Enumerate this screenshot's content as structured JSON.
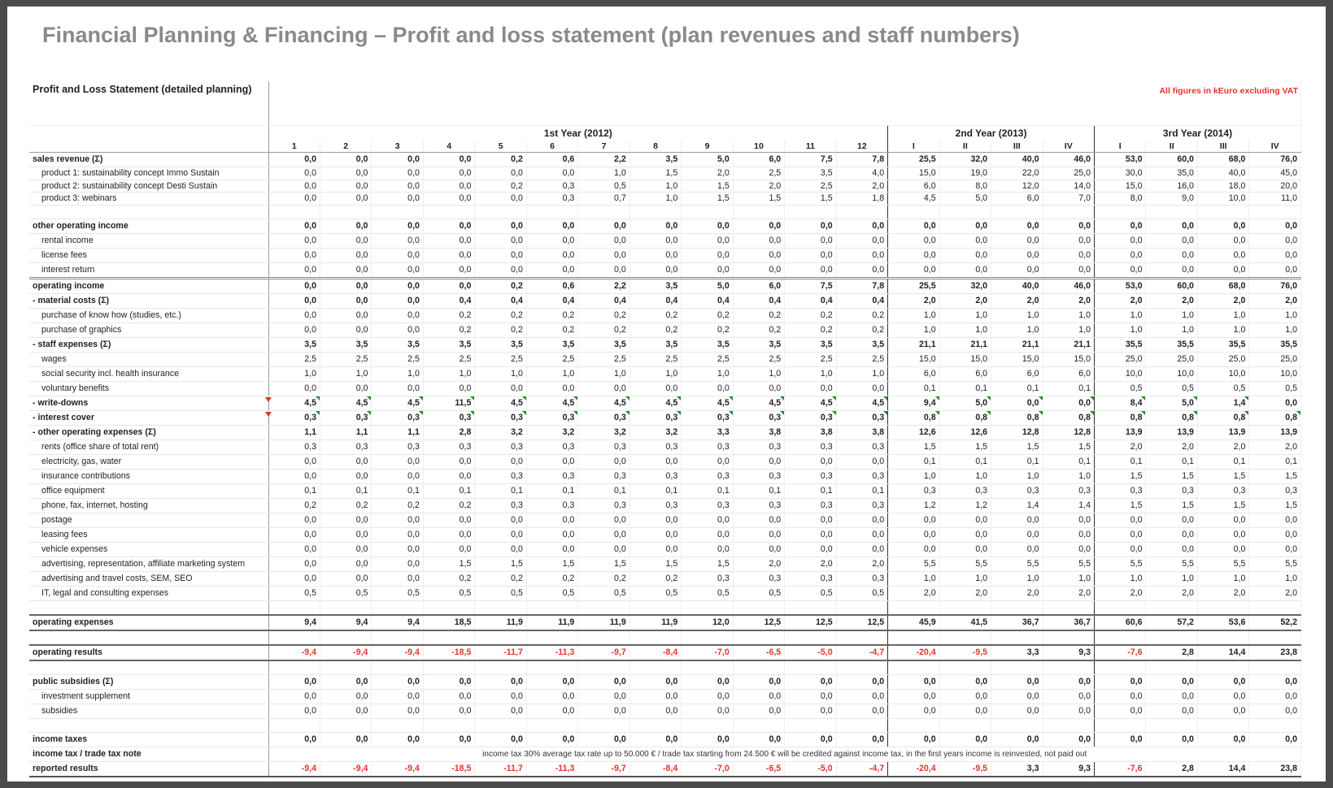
{
  "title": "Financial Planning & Financing – Profit and loss statement (plan revenues and staff numbers)",
  "statement_title": "Profit and Loss Statement (detailed planning)",
  "units_note": "All figures in kEuro excluding VAT",
  "years": [
    "1st Year (2012)",
    "2nd Year (2013)",
    "3rd Year (2014)"
  ],
  "columns": [
    "1",
    "2",
    "3",
    "4",
    "5",
    "6",
    "7",
    "8",
    "9",
    "10",
    "11",
    "12",
    "I",
    "II",
    "III",
    "IV",
    "I",
    "II",
    "III",
    "IV"
  ],
  "colors": {
    "negative": "#e8312f",
    "title": "#8a8a8a",
    "comment_marker": "#2e8b2e"
  },
  "rows": [
    {
      "label": "sales revenue (Σ)",
      "kind": "sum",
      "values": [
        "0,0",
        "0,0",
        "0,0",
        "0,0",
        "0,2",
        "0,6",
        "2,2",
        "3,5",
        "5,0",
        "6,0",
        "7,5",
        "7,8",
        "25,5",
        "32,0",
        "40,0",
        "46,0",
        "53,0",
        "60,0",
        "68,0",
        "76,0"
      ]
    },
    {
      "label": "product 1: sustainability concept Immo Sustain",
      "kind": "prod",
      "values": [
        "0,0",
        "0,0",
        "0,0",
        "0,0",
        "0,0",
        "0,0",
        "1,0",
        "1,5",
        "2,0",
        "2,5",
        "3,5",
        "4,0",
        "15,0",
        "19,0",
        "22,0",
        "25,0",
        "30,0",
        "35,0",
        "40,0",
        "45,0"
      ]
    },
    {
      "label": "product 2: sustainability concept Desti Sustain",
      "kind": "prod",
      "values": [
        "0,0",
        "0,0",
        "0,0",
        "0,0",
        "0,2",
        "0,3",
        "0,5",
        "1,0",
        "1,5",
        "2,0",
        "2,5",
        "2,0",
        "6,0",
        "8,0",
        "12,0",
        "14,0",
        "15,0",
        "16,0",
        "18,0",
        "20,0"
      ]
    },
    {
      "label": "product 3: webinars",
      "kind": "prod",
      "values": [
        "0,0",
        "0,0",
        "0,0",
        "0,0",
        "0,0",
        "0,3",
        "0,7",
        "1,0",
        "1,5",
        "1,5",
        "1,5",
        "1,8",
        "4,5",
        "5,0",
        "6,0",
        "7,0",
        "8,0",
        "9,0",
        "10,0",
        "11,0"
      ]
    },
    {
      "kind": "spacer"
    },
    {
      "label": "other operating income",
      "kind": "sum",
      "values": [
        "0,0",
        "0,0",
        "0,0",
        "0,0",
        "0,0",
        "0,0",
        "0,0",
        "0,0",
        "0,0",
        "0,0",
        "0,0",
        "0,0",
        "0,0",
        "0,0",
        "0,0",
        "0,0",
        "0,0",
        "0,0",
        "0,0",
        "0,0"
      ]
    },
    {
      "label": "rental income",
      "kind": "item",
      "values": [
        "0,0",
        "0,0",
        "0,0",
        "0,0",
        "0,0",
        "0,0",
        "0,0",
        "0,0",
        "0,0",
        "0,0",
        "0,0",
        "0,0",
        "0,0",
        "0,0",
        "0,0",
        "0,0",
        "0,0",
        "0,0",
        "0,0",
        "0,0"
      ]
    },
    {
      "label": "license fees",
      "kind": "item",
      "values": [
        "0,0",
        "0,0",
        "0,0",
        "0,0",
        "0,0",
        "0,0",
        "0,0",
        "0,0",
        "0,0",
        "0,0",
        "0,0",
        "0,0",
        "0,0",
        "0,0",
        "0,0",
        "0,0",
        "0,0",
        "0,0",
        "0,0",
        "0,0"
      ]
    },
    {
      "label": "interest return",
      "kind": "item",
      "values": [
        "0,0",
        "0,0",
        "0,0",
        "0,0",
        "0,0",
        "0,0",
        "0,0",
        "0,0",
        "0,0",
        "0,0",
        "0,0",
        "0,0",
        "0,0",
        "0,0",
        "0,0",
        "0,0",
        "0,0",
        "0,0",
        "0,0",
        "0,0"
      ]
    },
    {
      "label": "operating income",
      "kind": "total",
      "values": [
        "0,0",
        "0,0",
        "0,0",
        "0,0",
        "0,2",
        "0,6",
        "2,2",
        "3,5",
        "5,0",
        "6,0",
        "7,5",
        "7,8",
        "25,5",
        "32,0",
        "40,0",
        "46,0",
        "53,0",
        "60,0",
        "68,0",
        "76,0"
      ]
    },
    {
      "label": "- material costs (Σ)",
      "kind": "sum",
      "values": [
        "0,0",
        "0,0",
        "0,0",
        "0,4",
        "0,4",
        "0,4",
        "0,4",
        "0,4",
        "0,4",
        "0,4",
        "0,4",
        "0,4",
        "2,0",
        "2,0",
        "2,0",
        "2,0",
        "2,0",
        "2,0",
        "2,0",
        "2,0"
      ]
    },
    {
      "label": "purchase of know how (studies, etc.)",
      "kind": "item",
      "values": [
        "0,0",
        "0,0",
        "0,0",
        "0,2",
        "0,2",
        "0,2",
        "0,2",
        "0,2",
        "0,2",
        "0,2",
        "0,2",
        "0,2",
        "1,0",
        "1,0",
        "1,0",
        "1,0",
        "1,0",
        "1,0",
        "1,0",
        "1,0"
      ]
    },
    {
      "label": "purchase of graphics",
      "kind": "item",
      "values": [
        "0,0",
        "0,0",
        "0,0",
        "0,2",
        "0,2",
        "0,2",
        "0,2",
        "0,2",
        "0,2",
        "0,2",
        "0,2",
        "0,2",
        "1,0",
        "1,0",
        "1,0",
        "1,0",
        "1,0",
        "1,0",
        "1,0",
        "1,0"
      ]
    },
    {
      "label": "- staff expenses (Σ)",
      "kind": "sum",
      "values": [
        "3,5",
        "3,5",
        "3,5",
        "3,5",
        "3,5",
        "3,5",
        "3,5",
        "3,5",
        "3,5",
        "3,5",
        "3,5",
        "3,5",
        "21,1",
        "21,1",
        "21,1",
        "21,1",
        "35,5",
        "35,5",
        "35,5",
        "35,5"
      ]
    },
    {
      "label": "wages",
      "kind": "item",
      "values": [
        "2,5",
        "2,5",
        "2,5",
        "2,5",
        "2,5",
        "2,5",
        "2,5",
        "2,5",
        "2,5",
        "2,5",
        "2,5",
        "2,5",
        "15,0",
        "15,0",
        "15,0",
        "15,0",
        "25,0",
        "25,0",
        "25,0",
        "25,0"
      ]
    },
    {
      "label": "social security incl. health insurance",
      "kind": "item",
      "values": [
        "1,0",
        "1,0",
        "1,0",
        "1,0",
        "1,0",
        "1,0",
        "1,0",
        "1,0",
        "1,0",
        "1,0",
        "1,0",
        "1,0",
        "6,0",
        "6,0",
        "6,0",
        "6,0",
        "10,0",
        "10,0",
        "10,0",
        "10,0"
      ]
    },
    {
      "label": "voluntary benefits",
      "kind": "item",
      "values": [
        "0,0",
        "0,0",
        "0,0",
        "0,0",
        "0,0",
        "0,0",
        "0,0",
        "0,0",
        "0,0",
        "0,0",
        "0,0",
        "0,0",
        "0,1",
        "0,1",
        "0,1",
        "0,1",
        "0,5",
        "0,5",
        "0,5",
        "0,5"
      ]
    },
    {
      "label": "- write-downs",
      "kind": "sum-comment",
      "values": [
        "4,5",
        "4,5",
        "4,5",
        "11,5",
        "4,5",
        "4,5",
        "4,5",
        "4,5",
        "4,5",
        "4,5",
        "4,5",
        "4,5",
        "9,4",
        "5,0",
        "0,0",
        "0,0",
        "8,4",
        "5,0",
        "1,4",
        "0,0"
      ]
    },
    {
      "label": "- interest cover",
      "kind": "sum-comment",
      "values": [
        "0,3",
        "0,3",
        "0,3",
        "0,3",
        "0,3",
        "0,3",
        "0,3",
        "0,3",
        "0,3",
        "0,3",
        "0,3",
        "0,3",
        "0,8",
        "0,8",
        "0,8",
        "0,8",
        "0,8",
        "0,8",
        "0,8",
        "0,8"
      ]
    },
    {
      "label": "- other operating expenses (Σ)",
      "kind": "sum",
      "values": [
        "1,1",
        "1,1",
        "1,1",
        "2,8",
        "3,2",
        "3,2",
        "3,2",
        "3,2",
        "3,3",
        "3,8",
        "3,8",
        "3,8",
        "12,6",
        "12,6",
        "12,8",
        "12,8",
        "13,9",
        "13,9",
        "13,9",
        "13,9"
      ]
    },
    {
      "label": "rents (office share of total rent)",
      "kind": "item",
      "values": [
        "0,3",
        "0,3",
        "0,3",
        "0,3",
        "0,3",
        "0,3",
        "0,3",
        "0,3",
        "0,3",
        "0,3",
        "0,3",
        "0,3",
        "1,5",
        "1,5",
        "1,5",
        "1,5",
        "2,0",
        "2,0",
        "2,0",
        "2,0"
      ]
    },
    {
      "label": "electricity, gas, water",
      "kind": "item",
      "values": [
        "0,0",
        "0,0",
        "0,0",
        "0,0",
        "0,0",
        "0,0",
        "0,0",
        "0,0",
        "0,0",
        "0,0",
        "0,0",
        "0,0",
        "0,1",
        "0,1",
        "0,1",
        "0,1",
        "0,1",
        "0,1",
        "0,1",
        "0,1"
      ]
    },
    {
      "label": "insurance contributions",
      "kind": "item",
      "values": [
        "0,0",
        "0,0",
        "0,0",
        "0,0",
        "0,3",
        "0,3",
        "0,3",
        "0,3",
        "0,3",
        "0,3",
        "0,3",
        "0,3",
        "1,0",
        "1,0",
        "1,0",
        "1,0",
        "1,5",
        "1,5",
        "1,5",
        "1,5"
      ]
    },
    {
      "label": "office equipment",
      "kind": "item",
      "values": [
        "0,1",
        "0,1",
        "0,1",
        "0,1",
        "0,1",
        "0,1",
        "0,1",
        "0,1",
        "0,1",
        "0,1",
        "0,1",
        "0,1",
        "0,3",
        "0,3",
        "0,3",
        "0,3",
        "0,3",
        "0,3",
        "0,3",
        "0,3"
      ]
    },
    {
      "label": "phone, fax, internet, hosting",
      "kind": "item",
      "values": [
        "0,2",
        "0,2",
        "0,2",
        "0,2",
        "0,3",
        "0,3",
        "0,3",
        "0,3",
        "0,3",
        "0,3",
        "0,3",
        "0,3",
        "1,2",
        "1,2",
        "1,4",
        "1,4",
        "1,5",
        "1,5",
        "1,5",
        "1,5"
      ]
    },
    {
      "label": "postage",
      "kind": "item",
      "values": [
        "0,0",
        "0,0",
        "0,0",
        "0,0",
        "0,0",
        "0,0",
        "0,0",
        "0,0",
        "0,0",
        "0,0",
        "0,0",
        "0,0",
        "0,0",
        "0,0",
        "0,0",
        "0,0",
        "0,0",
        "0,0",
        "0,0",
        "0,0"
      ]
    },
    {
      "label": "leasing fees",
      "kind": "item",
      "values": [
        "0,0",
        "0,0",
        "0,0",
        "0,0",
        "0,0",
        "0,0",
        "0,0",
        "0,0",
        "0,0",
        "0,0",
        "0,0",
        "0,0",
        "0,0",
        "0,0",
        "0,0",
        "0,0",
        "0,0",
        "0,0",
        "0,0",
        "0,0"
      ]
    },
    {
      "label": "vehicle expenses",
      "kind": "item",
      "values": [
        "0,0",
        "0,0",
        "0,0",
        "0,0",
        "0,0",
        "0,0",
        "0,0",
        "0,0",
        "0,0",
        "0,0",
        "0,0",
        "0,0",
        "0,0",
        "0,0",
        "0,0",
        "0,0",
        "0,0",
        "0,0",
        "0,0",
        "0,0"
      ]
    },
    {
      "label": "advertising, representation, affiliate marketing system",
      "kind": "item",
      "values": [
        "0,0",
        "0,0",
        "0,0",
        "1,5",
        "1,5",
        "1,5",
        "1,5",
        "1,5",
        "1,5",
        "2,0",
        "2,0",
        "2,0",
        "5,5",
        "5,5",
        "5,5",
        "5,5",
        "5,5",
        "5,5",
        "5,5",
        "5,5"
      ]
    },
    {
      "label": "advertising and travel costs, SEM, SEO",
      "kind": "item",
      "values": [
        "0,0",
        "0,0",
        "0,0",
        "0,2",
        "0,2",
        "0,2",
        "0,2",
        "0,2",
        "0,3",
        "0,3",
        "0,3",
        "0,3",
        "1,0",
        "1,0",
        "1,0",
        "1,0",
        "1,0",
        "1,0",
        "1,0",
        "1,0"
      ]
    },
    {
      "label": "IT, legal and consulting expenses",
      "kind": "item",
      "values": [
        "0,5",
        "0,5",
        "0,5",
        "0,5",
        "0,5",
        "0,5",
        "0,5",
        "0,5",
        "0,5",
        "0,5",
        "0,5",
        "0,5",
        "2,0",
        "2,0",
        "2,0",
        "2,0",
        "2,0",
        "2,0",
        "2,0",
        "2,0"
      ]
    },
    {
      "kind": "spacer"
    },
    {
      "label": "operating expenses",
      "kind": "boxed",
      "values": [
        "9,4",
        "9,4",
        "9,4",
        "18,5",
        "11,9",
        "11,9",
        "11,9",
        "11,9",
        "12,0",
        "12,5",
        "12,5",
        "12,5",
        "45,9",
        "41,5",
        "36,7",
        "36,7",
        "60,6",
        "57,2",
        "53,6",
        "52,2"
      ]
    },
    {
      "kind": "spacer"
    },
    {
      "label": "operating results",
      "kind": "boxed",
      "values": [
        "-9,4",
        "-9,4",
        "-9,4",
        "-18,5",
        "-11,7",
        "-11,3",
        "-9,7",
        "-8,4",
        "-7,0",
        "-6,5",
        "-5,0",
        "-4,7",
        "-20,4",
        "-9,5",
        "3,3",
        "9,3",
        "-7,6",
        "2,8",
        "14,4",
        "23,8"
      ]
    },
    {
      "kind": "spacer"
    },
    {
      "label": "public subsidies (Σ)",
      "kind": "sum",
      "values": [
        "0,0",
        "0,0",
        "0,0",
        "0,0",
        "0,0",
        "0,0",
        "0,0",
        "0,0",
        "0,0",
        "0,0",
        "0,0",
        "0,0",
        "0,0",
        "0,0",
        "0,0",
        "0,0",
        "0,0",
        "0,0",
        "0,0",
        "0,0"
      ]
    },
    {
      "label": "investment supplement",
      "kind": "item",
      "values": [
        "0,0",
        "0,0",
        "0,0",
        "0,0",
        "0,0",
        "0,0",
        "0,0",
        "0,0",
        "0,0",
        "0,0",
        "0,0",
        "0,0",
        "0,0",
        "0,0",
        "0,0",
        "0,0",
        "0,0",
        "0,0",
        "0,0",
        "0,0"
      ]
    },
    {
      "label": "subsidies",
      "kind": "item",
      "values": [
        "0,0",
        "0,0",
        "0,0",
        "0,0",
        "0,0",
        "0,0",
        "0,0",
        "0,0",
        "0,0",
        "0,0",
        "0,0",
        "0,0",
        "0,0",
        "0,0",
        "0,0",
        "0,0",
        "0,0",
        "0,0",
        "0,0",
        "0,0"
      ]
    },
    {
      "kind": "spacer"
    },
    {
      "label": "income taxes",
      "kind": "sum",
      "values": [
        "0,0",
        "0,0",
        "0,0",
        "0,0",
        "0,0",
        "0,0",
        "0,0",
        "0,0",
        "0,0",
        "0,0",
        "0,0",
        "0,0",
        "0,0",
        "0,0",
        "0,0",
        "0,0",
        "0,0",
        "0,0",
        "0,0",
        "0,0"
      ]
    },
    {
      "label": "income tax / trade tax note",
      "kind": "note",
      "note": "income tax 30%  average tax rate up to 50.000 € / trade tax starting from 24.500 € will be credited against income tax, in the first years income is reinvested, not paid out"
    },
    {
      "label": "reported results",
      "kind": "final",
      "values": [
        "-9,4",
        "-9,4",
        "-9,4",
        "-18,5",
        "-11,7",
        "-11,3",
        "-9,7",
        "-8,4",
        "-7,0",
        "-6,5",
        "-5,0",
        "-4,7",
        "-20,4",
        "-9,5",
        "3,3",
        "9,3",
        "-7,6",
        "2,8",
        "14,4",
        "23,8"
      ]
    }
  ]
}
